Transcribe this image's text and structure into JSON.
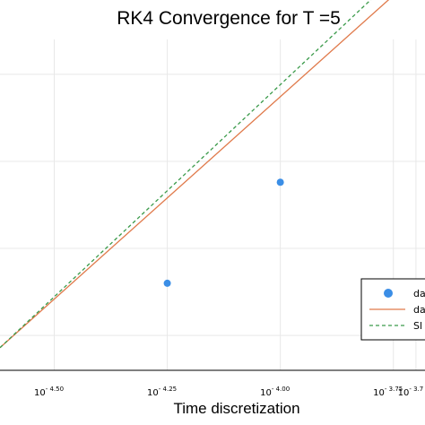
{
  "chart_data": {
    "type": "scatter",
    "title": "RK4 Convergence for T =5",
    "xlabel": "Time discretization",
    "ylabel": "",
    "x_scale": "log10",
    "xlim": [
      -4.62,
      -3.68
    ],
    "ylim": [
      -10.4,
      -6.6
    ],
    "grid": true,
    "legend_position": "bottom-right",
    "x_ticks": [
      {
        "base": "10",
        "exp": "- 4.50",
        "log10": -4.5
      },
      {
        "base": "10",
        "exp": "- 4.25",
        "log10": -4.25
      },
      {
        "base": "10",
        "exp": "- 4.00",
        "log10": -4.0
      },
      {
        "base": "10",
        "exp": "- 3.75",
        "log10": -3.75
      },
      {
        "base": "10",
        "exp": "- 3.7",
        "log10": -3.7
      }
    ],
    "y_gridlines": [
      -7.0,
      -8.0,
      -9.0,
      -10.0
    ],
    "series": [
      {
        "name": "da",
        "kind": "scatter",
        "color": "#3b8ee6",
        "x_log10": [
          -4.25,
          -4.0
        ],
        "y": [
          -9.4,
          -8.24
        ]
      },
      {
        "name": "da",
        "kind": "line",
        "color": "#e07a4b",
        "x_log10": [
          -4.62,
          -3.68
        ],
        "y": [
          -10.14,
          -5.77
        ]
      },
      {
        "name": "Sl",
        "kind": "dashed-line",
        "color": "#3a9a4a",
        "x_log10": [
          -4.62,
          -3.68
        ],
        "y": [
          -10.14,
          -5.56
        ]
      }
    ]
  }
}
